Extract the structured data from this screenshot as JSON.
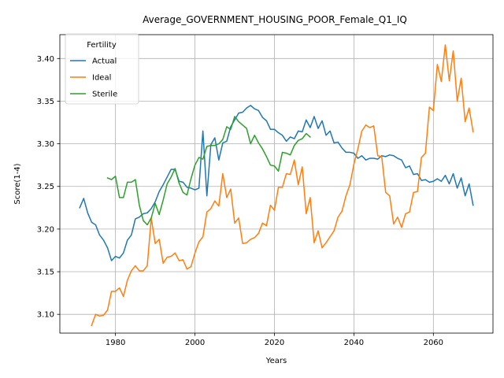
{
  "chart_data": {
    "type": "line",
    "title": "Average_GOVERNMENT_HOUSING_POOR_Female_Q1_IQ",
    "xlabel": "Years",
    "ylabel": "Score(1-4)",
    "xlim": [
      1966,
      2075
    ],
    "ylim": [
      3.078,
      3.428
    ],
    "xticks": [
      1980,
      2000,
      2020,
      2040,
      2060
    ],
    "yticks": [
      3.1,
      3.15,
      3.2,
      3.25,
      3.3,
      3.35,
      3.4
    ],
    "grid": true,
    "legend": {
      "title": "Fertility",
      "placement": "top-left"
    },
    "series": [
      {
        "name": "Actual",
        "color": "#1f77b4",
        "x": [
          1971,
          1972,
          1973,
          1974,
          1975,
          1976,
          1977,
          1978,
          1979,
          1980,
          1981,
          1982,
          1983,
          1984,
          1985,
          1986,
          1987,
          1988,
          1989,
          1990,
          1991,
          1992,
          1993,
          1994,
          1995,
          1996,
          1997,
          1998,
          1999,
          2000,
          2001,
          2002,
          2003,
          2004,
          2005,
          2006,
          2007,
          2008,
          2009,
          2010,
          2011,
          2012,
          2013,
          2014,
          2015,
          2016,
          2017,
          2018,
          2019,
          2020,
          2021,
          2022,
          2023,
          2024,
          2025,
          2026,
          2027,
          2028,
          2029,
          2030,
          2031,
          2032,
          2033,
          2034,
          2035,
          2036,
          2037,
          2038,
          2039,
          2040,
          2041,
          2042,
          2043,
          2044,
          2045,
          2046,
          2047,
          2048,
          2049,
          2050,
          2051,
          2052,
          2053,
          2054,
          2055,
          2056,
          2057,
          2058,
          2059,
          2060,
          2061,
          2062,
          2063,
          2064,
          2065,
          2066,
          2067,
          2068,
          2069,
          2070
        ],
        "y": [
          3.225,
          3.236,
          3.219,
          3.208,
          3.205,
          3.193,
          3.187,
          3.178,
          3.163,
          3.168,
          3.166,
          3.172,
          3.187,
          3.193,
          3.212,
          3.214,
          3.218,
          3.219,
          3.224,
          3.232,
          3.244,
          3.252,
          3.261,
          3.27,
          3.27,
          3.256,
          3.255,
          3.249,
          3.248,
          3.246,
          3.248,
          3.315,
          3.239,
          3.299,
          3.307,
          3.281,
          3.301,
          3.303,
          3.32,
          3.328,
          3.336,
          3.337,
          3.342,
          3.345,
          3.341,
          3.339,
          3.331,
          3.327,
          3.317,
          3.317,
          3.313,
          3.31,
          3.303,
          3.308,
          3.306,
          3.315,
          3.314,
          3.328,
          3.319,
          3.332,
          3.318,
          3.327,
          3.31,
          3.315,
          3.301,
          3.302,
          3.295,
          3.29,
          3.29,
          3.289,
          3.283,
          3.286,
          3.281,
          3.283,
          3.283,
          3.282,
          3.286,
          3.285,
          3.287,
          3.286,
          3.283,
          3.281,
          3.272,
          3.274,
          3.264,
          3.265,
          3.257,
          3.258,
          3.255,
          3.256,
          3.259,
          3.256,
          3.263,
          3.253,
          3.265,
          3.248,
          3.26,
          3.239,
          3.253,
          3.228
        ]
      },
      {
        "name": "Ideal",
        "color": "#ff7f0e",
        "x": [
          1974,
          1975,
          1976,
          1977,
          1978,
          1979,
          1980,
          1981,
          1982,
          1983,
          1984,
          1985,
          1986,
          1987,
          1988,
          1989,
          1990,
          1991,
          1992,
          1993,
          1994,
          1995,
          1996,
          1997,
          1998,
          1999,
          2000,
          2001,
          2002,
          2003,
          2004,
          2005,
          2006,
          2007,
          2008,
          2009,
          2010,
          2011,
          2012,
          2013,
          2014,
          2015,
          2016,
          2017,
          2018,
          2019,
          2020,
          2021,
          2022,
          2023,
          2024,
          2025,
          2026,
          2027,
          2028,
          2029,
          2030,
          2031,
          2032,
          2033,
          2034,
          2035,
          2036,
          2037,
          2038,
          2039,
          2040,
          2041,
          2042,
          2043,
          2044,
          2045,
          2046,
          2047,
          2048,
          2049,
          2050,
          2051,
          2052,
          2053,
          2054,
          2055,
          2056,
          2057,
          2058,
          2059,
          2060,
          2061,
          2062,
          2063,
          2064,
          2065,
          2066,
          2067,
          2068,
          2069,
          2070
        ],
        "y": [
          3.087,
          3.1,
          3.098,
          3.099,
          3.105,
          3.127,
          3.127,
          3.131,
          3.121,
          3.14,
          3.151,
          3.157,
          3.151,
          3.151,
          3.157,
          3.213,
          3.183,
          3.188,
          3.16,
          3.167,
          3.168,
          3.172,
          3.163,
          3.164,
          3.153,
          3.156,
          3.172,
          3.185,
          3.191,
          3.22,
          3.224,
          3.233,
          3.227,
          3.265,
          3.237,
          3.247,
          3.207,
          3.213,
          3.183,
          3.184,
          3.188,
          3.19,
          3.195,
          3.207,
          3.204,
          3.228,
          3.222,
          3.249,
          3.249,
          3.265,
          3.264,
          3.281,
          3.252,
          3.273,
          3.218,
          3.237,
          3.184,
          3.198,
          3.178,
          3.184,
          3.191,
          3.198,
          3.214,
          3.221,
          3.239,
          3.252,
          3.276,
          3.294,
          3.315,
          3.322,
          3.319,
          3.321,
          3.286,
          3.285,
          3.243,
          3.239,
          3.206,
          3.214,
          3.202,
          3.218,
          3.22,
          3.243,
          3.244,
          3.284,
          3.289,
          3.343,
          3.339,
          3.393,
          3.373,
          3.416,
          3.374,
          3.409,
          3.35,
          3.377,
          3.326,
          3.342,
          3.314
        ]
      },
      {
        "name": "Sterile",
        "color": "#2ca02c",
        "x": [
          1978,
          1979,
          1980,
          1981,
          1982,
          1983,
          1984,
          1985,
          1986,
          1987,
          1988,
          1989,
          1990,
          1991,
          1992,
          1993,
          1994,
          1995,
          1996,
          1997,
          1998,
          1999,
          2000,
          2001,
          2002,
          2003,
          2004,
          2005,
          2006,
          2007,
          2008,
          2009,
          2010,
          2011,
          2012,
          2013,
          2014,
          2015,
          2016,
          2017,
          2018,
          2019,
          2020,
          2021,
          2022,
          2023,
          2024,
          2025,
          2026,
          2027,
          2028,
          2029
        ],
        "y": [
          3.26,
          3.258,
          3.262,
          3.237,
          3.237,
          3.255,
          3.255,
          3.258,
          3.228,
          3.21,
          3.205,
          3.213,
          3.23,
          3.217,
          3.234,
          3.253,
          3.261,
          3.271,
          3.254,
          3.243,
          3.24,
          3.259,
          3.275,
          3.284,
          3.282,
          3.297,
          3.298,
          3.298,
          3.3,
          3.305,
          3.32,
          3.317,
          3.332,
          3.326,
          3.322,
          3.318,
          3.3,
          3.31,
          3.301,
          3.294,
          3.285,
          3.275,
          3.274,
          3.268,
          3.29,
          3.289,
          3.287,
          3.298,
          3.304,
          3.306,
          3.312,
          3.308
        ]
      }
    ]
  }
}
